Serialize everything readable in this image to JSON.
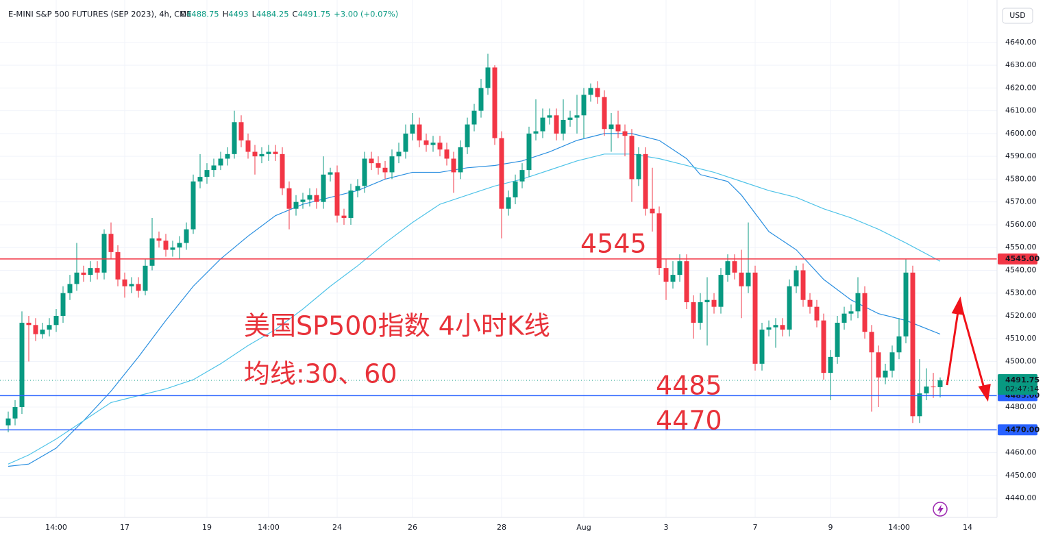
{
  "chart_data": {
    "type": "candlestick",
    "title": "E-MINI S&P 500 FUTURES (SEP 2023), 4h, CME",
    "ohlc": [
      {
        "label": "O",
        "value": 4488.75
      },
      {
        "label": "H",
        "value": 4493.0
      },
      {
        "label": "L",
        "value": 4484.25
      },
      {
        "label": "C",
        "value": 4491.75
      }
    ],
    "change": "+3.00 (+0.07%)",
    "currency": "USD",
    "up_color": "#089981",
    "down_color": "#f23645",
    "open": [
      4472,
      4475,
      4480,
      4517,
      4516,
      4512,
      4514,
      4516,
      4520,
      4530,
      4534,
      4539,
      4538,
      4541,
      4539,
      4556,
      4548,
      4536,
      4533,
      4534,
      4531,
      4542,
      4554,
      4553,
      4549,
      4550,
      4552,
      4558,
      4579,
      4581,
      4584,
      4586,
      4589,
      4591,
      4605,
      4597,
      4592,
      4590,
      4591,
      4592,
      4591,
      4576,
      4567,
      4570,
      4571,
      4573,
      4570,
      4582,
      4583,
      4564,
      4563,
      4575,
      4577,
      4589,
      4587,
      4585,
      4583,
      4590,
      4592,
      4600,
      4604,
      4597,
      4595,
      4596,
      4593,
      4589,
      4583,
      4594,
      4604,
      4610,
      4620,
      4629,
      4598,
      4567,
      4572,
      4579,
      4584,
      4600,
      4601,
      4607,
      4608,
      4600,
      4606,
      4607,
      4608,
      4617,
      4620,
      4616,
      4602,
      4604,
      4601,
      4599,
      4580,
      4591,
      4567,
      4565,
      4541,
      4535,
      4538,
      4544,
      4526,
      4517,
      4526,
      4527,
      4524,
      4538,
      4544,
      4539,
      4533,
      4539,
      4499,
      4514,
      4515,
      4516,
      4514,
      4533,
      4540,
      4527,
      4524,
      4518,
      4495,
      4502,
      4517,
      4521,
      4522,
      4530,
      4513,
      4504,
      4493,
      4496,
      4504,
      4511,
      4539,
      4476,
      4486,
      4489,
      4488.75
    ],
    "high": [
      4478,
      4483,
      4522,
      4520,
      4519,
      4517,
      4519,
      4523,
      4533,
      4538,
      4552,
      4542,
      4544,
      4544,
      4558,
      4561,
      4551,
      4539,
      4537,
      4537,
      4545,
      4563,
      4557,
      4556,
      4553,
      4555,
      4561,
      4582,
      4591,
      4587,
      4589,
      4592,
      4594,
      4610,
      4608,
      4600,
      4595,
      4594,
      4595,
      4595,
      4594,
      4579,
      4573,
      4574,
      4576,
      4576,
      4590,
      4585,
      4586,
      4567,
      4578,
      4580,
      4592,
      4592,
      4590,
      4588,
      4593,
      4596,
      4604,
      4609,
      4607,
      4600,
      4599,
      4599,
      4596,
      4592,
      4597,
      4607,
      4613,
      4624,
      4635,
      4630,
      4601,
      4575,
      4582,
      4587,
      4603,
      4615,
      4611,
      4611,
      4611,
      4615,
      4610,
      4617,
      4620,
      4622,
      4623,
      4619,
      4609,
      4610,
      4604,
      4602,
      4594,
      4594,
      4585,
      4568,
      4545,
      4544,
      4547,
      4547,
      4529,
      4530,
      4537,
      4530,
      4541,
      4547,
      4547,
      4549,
      4561,
      4542,
      4517,
      4518,
      4519,
      4519,
      4536,
      4542,
      4543,
      4530,
      4527,
      4521,
      4505,
      4520,
      4524,
      4525,
      4537,
      4533,
      4516,
      4507,
      4499,
      4507,
      4519,
      4545,
      4542,
      4501,
      4497,
      4495,
      4493
    ],
    "low": [
      4469,
      4472,
      4477,
      4500,
      4509,
      4510,
      4511,
      4513,
      4517,
      4527,
      4531,
      4535,
      4535,
      4536,
      4536,
      4545,
      4533,
      4528,
      4530,
      4528,
      4529,
      4540,
      4550,
      4546,
      4546,
      4545,
      4549,
      4556,
      4576,
      4578,
      4581,
      4584,
      4586,
      4589,
      4594,
      4589,
      4582,
      4587,
      4588,
      4588,
      4573,
      4558,
      4564,
      4567,
      4568,
      4567,
      4567,
      4579,
      4561,
      4560,
      4560,
      4572,
      4574,
      4584,
      4582,
      4580,
      4580,
      4587,
      4589,
      4597,
      4594,
      4592,
      4592,
      4590,
      4586,
      4574,
      4580,
      4591,
      4601,
      4607,
      4617,
      4595,
      4554,
      4564,
      4569,
      4576,
      4581,
      4597,
      4598,
      4604,
      4597,
      4597,
      4603,
      4600,
      4598,
      4614,
      4613,
      4599,
      4592,
      4598,
      4590,
      4570,
      4577,
      4564,
      4557,
      4538,
      4527,
      4532,
      4535,
      4523,
      4510,
      4514,
      4507,
      4521,
      4521,
      4535,
      4536,
      4519,
      4530,
      4496,
      4496,
      4511,
      4506,
      4511,
      4511,
      4530,
      4524,
      4521,
      4515,
      4492,
      4483,
      4499,
      4514,
      4518,
      4519,
      4510,
      4478,
      4480,
      4490,
      4493,
      4501,
      4508,
      4473,
      4473,
      4483,
      4484,
      4484.25
    ],
    "close": [
      4475,
      4480,
      4517,
      4516,
      4512,
      4514,
      4516,
      4520,
      4530,
      4534,
      4539,
      4538,
      4541,
      4539,
      4556,
      4548,
      4536,
      4533,
      4534,
      4531,
      4542,
      4554,
      4553,
      4549,
      4550,
      4552,
      4558,
      4579,
      4581,
      4584,
      4586,
      4589,
      4591,
      4605,
      4597,
      4592,
      4590,
      4591,
      4592,
      4591,
      4576,
      4567,
      4570,
      4571,
      4573,
      4570,
      4582,
      4583,
      4564,
      4563,
      4575,
      4577,
      4589,
      4587,
      4585,
      4583,
      4590,
      4592,
      4600,
      4604,
      4597,
      4595,
      4596,
      4593,
      4589,
      4583,
      4594,
      4604,
      4610,
      4620,
      4629,
      4598,
      4567,
      4572,
      4579,
      4584,
      4600,
      4601,
      4607,
      4608,
      4600,
      4606,
      4607,
      4608,
      4617,
      4620,
      4616,
      4602,
      4604,
      4601,
      4599,
      4580,
      4591,
      4567,
      4565,
      4541,
      4535,
      4538,
      4544,
      4526,
      4517,
      4526,
      4527,
      4524,
      4538,
      4544,
      4539,
      4533,
      4539,
      4499,
      4514,
      4515,
      4516,
      4514,
      4533,
      4540,
      4527,
      4524,
      4518,
      4495,
      4502,
      4517,
      4521,
      4522,
      4530,
      4513,
      4504,
      4493,
      4496,
      4504,
      4511,
      4539,
      4476,
      4486,
      4489,
      4488.75,
      4491.75
    ],
    "lines": [
      {
        "color": "#2a8fe0",
        "x": [
          0,
          3,
          7,
          11,
          15,
          19,
          23,
          27,
          31,
          35,
          39,
          43,
          47,
          51,
          55,
          59,
          63,
          67,
          71,
          75,
          79,
          83,
          87,
          91,
          95,
          99,
          101,
          105,
          107,
          111,
          115,
          119,
          123,
          127,
          131,
          136
        ],
        "values": [
          4454,
          4455,
          4462,
          4474,
          4487,
          4502,
          4518,
          4533,
          4545,
          4555,
          4564,
          4569,
          4572,
          4575,
          4580,
          4583,
          4583,
          4585,
          4586,
          4588,
          4592,
          4597,
          4600,
          4600,
          4597,
          4589,
          4582,
          4579,
          4573,
          4557,
          4549,
          4536,
          4527,
          4521,
          4518,
          4512
        ]
      },
      {
        "color": "#4fc3e8",
        "x": [
          0,
          3,
          7,
          11,
          15,
          19,
          23,
          27,
          31,
          35,
          39,
          43,
          47,
          51,
          55,
          59,
          63,
          67,
          71,
          75,
          79,
          83,
          87,
          91,
          95,
          99,
          103,
          107,
          111,
          115,
          119,
          123,
          127,
          131,
          136
        ],
        "values": [
          4455,
          4459,
          4466,
          4474,
          4482,
          4485,
          4488,
          4492,
          4499,
          4507,
          4514,
          4523,
          4533,
          4542,
          4552,
          4561,
          4569,
          4573,
          4577,
          4580,
          4584,
          4588,
          4591,
          4591,
          4589,
          4586,
          4583,
          4579,
          4575,
          4572,
          4567,
          4563,
          4558,
          4552,
          4544
        ]
      }
    ],
    "levels": [
      {
        "value": 4545,
        "label": "4545.00",
        "color": "#f23645"
      },
      {
        "value": 4485,
        "label": "4485.00",
        "color": "#2962ff"
      },
      {
        "value": 4470,
        "label": "4470.00",
        "color": "#2962ff"
      }
    ],
    "last": {
      "value": 4491.75,
      "countdown": "02:47:14"
    },
    "ylim": [
      4431.6,
      4658.6
    ],
    "yticks": [
      {
        "value": 4440,
        "label": "4440.00"
      },
      {
        "value": 4450,
        "label": "4450.00"
      },
      {
        "value": 4460,
        "label": "4460.00"
      },
      {
        "value": 4480,
        "label": "4480.00"
      },
      {
        "value": 4500,
        "label": "4500.00"
      },
      {
        "value": 4510,
        "label": "4510.00"
      },
      {
        "value": 4520,
        "label": "4520.00"
      },
      {
        "value": 4530,
        "label": "4530.00"
      },
      {
        "value": 4540,
        "label": "4540.00"
      },
      {
        "value": 4550,
        "label": "4550.00"
      },
      {
        "value": 4560,
        "label": "4560.00"
      },
      {
        "value": 4570,
        "label": "4570.00"
      },
      {
        "value": 4580,
        "label": "4580.00"
      },
      {
        "value": 4590,
        "label": "4590.00"
      },
      {
        "value": 4600,
        "label": "4600.00"
      },
      {
        "value": 4610,
        "label": "4610.00"
      },
      {
        "value": 4620,
        "label": "4620.00"
      },
      {
        "value": 4630,
        "label": "4630.00"
      },
      {
        "value": 4640,
        "label": "4640.00"
      }
    ],
    "xlim": [
      -1.2,
      144.3
    ],
    "xticks": [
      {
        "value": 7,
        "label": "14:00"
      },
      {
        "value": 17,
        "label": "17"
      },
      {
        "value": 29,
        "label": "19"
      },
      {
        "value": 38,
        "label": "14:00"
      },
      {
        "value": 48,
        "label": "24"
      },
      {
        "value": 59,
        "label": "26"
      },
      {
        "value": 72,
        "label": "28"
      },
      {
        "value": 84,
        "label": "Aug"
      },
      {
        "value": 96,
        "label": "3"
      },
      {
        "value": 109,
        "label": "7"
      },
      {
        "value": 120,
        "label": "9"
      },
      {
        "value": 130,
        "label": "14:00"
      },
      {
        "value": 140,
        "label": "14"
      }
    ],
    "grid": true,
    "annotations": [
      "4545",
      "美国SP500指数 4小时K线",
      "均线:30、60",
      "4485",
      "4470"
    ]
  }
}
